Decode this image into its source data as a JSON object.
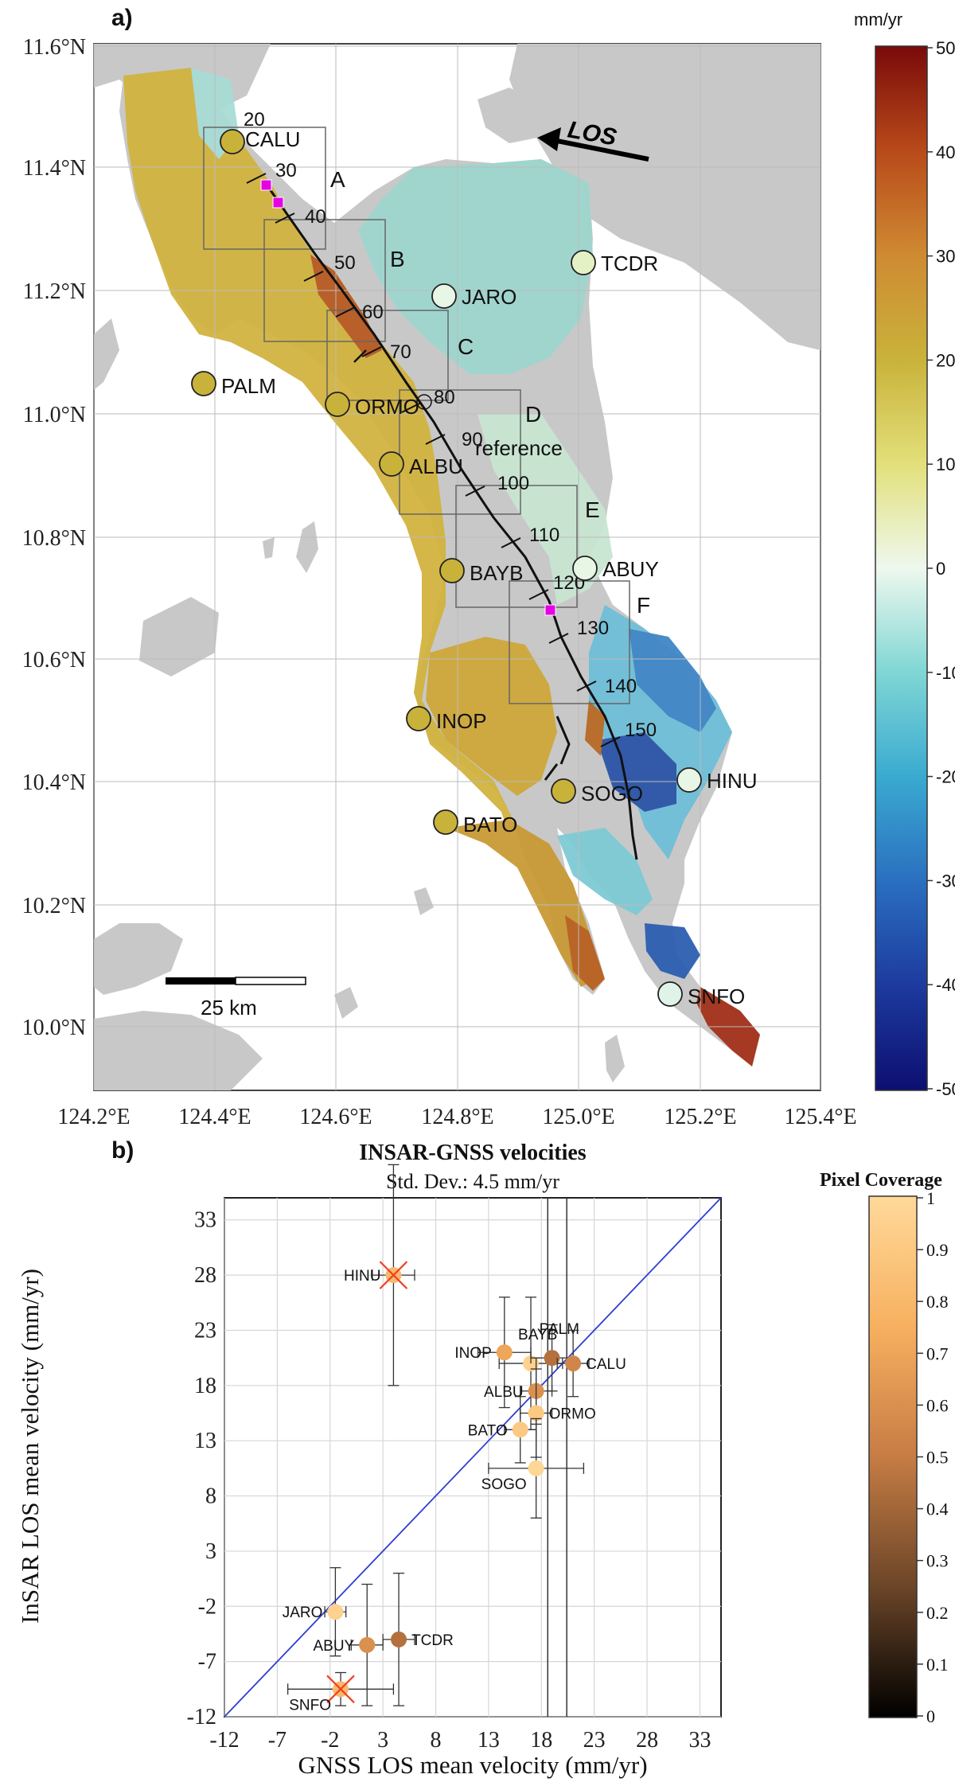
{
  "map": {
    "panel_label": "a)",
    "lat_ticks": [
      "11.6°N",
      "11.4°N",
      "11.2°N",
      "11.0°N",
      "10.8°N",
      "10.6°N",
      "10.4°N",
      "10.2°N",
      "10.0°N"
    ],
    "lon_ticks": [
      "124.2°E",
      "124.4°E",
      "124.6°E",
      "124.8°E",
      "125.0°E",
      "125.2°E",
      "125.4°E"
    ],
    "colorbar": {
      "unit": "mm/yr",
      "ticks": [
        "50",
        "40",
        "30",
        "20",
        "10",
        "0",
        "-10",
        "-20",
        "-30",
        "-40",
        "-50"
      ],
      "colors": [
        "#7a0a0a",
        "#b84a1a",
        "#cf8a32",
        "#c9b23a",
        "#e2e07a",
        "#eef8ee",
        "#7fd6d4",
        "#3aaad0",
        "#2a6fc0",
        "#1d3a9e",
        "#0c0f70"
      ]
    },
    "los_label": "LOS",
    "scale_label": "25 km",
    "reference_label": "reference",
    "box_labels": [
      "A",
      "B",
      "C",
      "D",
      "E",
      "F"
    ],
    "distance_labels": [
      "20",
      "30",
      "40",
      "50",
      "60",
      "70",
      "80",
      "90",
      "100",
      "110",
      "120",
      "130",
      "140",
      "150"
    ],
    "stations": [
      {
        "name": "CALU",
        "color": "#c9b23a"
      },
      {
        "name": "TCDR",
        "color": "#e4f1c4"
      },
      {
        "name": "JARO",
        "color": "#e8f6e6"
      },
      {
        "name": "PALM",
        "color": "#c9b23a"
      },
      {
        "name": "ORMO",
        "color": "#c9b23a"
      },
      {
        "name": "ALBU",
        "color": "#c9b23a"
      },
      {
        "name": "BAYB",
        "color": "#c9b23a"
      },
      {
        "name": "ABUY",
        "color": "#e8f6e6"
      },
      {
        "name": "INOP",
        "color": "#c9b23a"
      },
      {
        "name": "SOGO",
        "color": "#c9b23a"
      },
      {
        "name": "HINU",
        "color": "#e8f6e6"
      },
      {
        "name": "BATO",
        "color": "#c9b23a"
      },
      {
        "name": "SNFO",
        "color": "#dff3e8"
      }
    ]
  },
  "chart_data": {
    "type": "scatter",
    "panel_label": "b)",
    "title": "INSAR-GNSS velocities",
    "subtitle": "Std. Dev.: 4.5 mm/yr",
    "xlabel": "GNSS LOS mean velocity (mm/yr)",
    "ylabel": "InSAR LOS mean velocity (mm/yr)",
    "xlim": [
      -12,
      35
    ],
    "ylim": [
      -12,
      35
    ],
    "x_ticks": [
      -12,
      -7,
      -2,
      3,
      8,
      13,
      18,
      23,
      28,
      33
    ],
    "y_ticks": [
      -12,
      -7,
      -2,
      3,
      8,
      13,
      18,
      23,
      28,
      33
    ],
    "colorbar_label": "Pixel Coverage",
    "colorbar_ticks": [
      "1",
      "0.9",
      "0.8",
      "0.7",
      "0.6",
      "0.5",
      "0.4",
      "0.3",
      "0.2",
      "0.1",
      "0"
    ],
    "points": [
      {
        "name": "HINU",
        "x": 4.0,
        "y": 28.0,
        "xerr": 2.0,
        "yerr": 10.0,
        "coverage": 0.8,
        "outlier": true
      },
      {
        "name": "BAYB",
        "x": 17.0,
        "y": 20.0,
        "xerr": 3.0,
        "yerr": 6.0,
        "coverage": 0.95
      },
      {
        "name": "INOP",
        "x": 14.5,
        "y": 21.0,
        "xerr": 2.5,
        "yerr": 5.0,
        "coverage": 0.7
      },
      {
        "name": "PALM",
        "x": 19.0,
        "y": 20.5,
        "xerr": 2.0,
        "yerr": 3.0,
        "coverage": 0.45
      },
      {
        "name": "CALU",
        "x": 21.0,
        "y": 20.0,
        "xerr": 1.5,
        "yerr": 3.0,
        "coverage": 0.55
      },
      {
        "name": "ALBU",
        "x": 17.5,
        "y": 17.5,
        "xerr": 1.5,
        "yerr": 3.0,
        "coverage": 0.6
      },
      {
        "name": "ORMO",
        "x": 17.5,
        "y": 15.5,
        "xerr": 1.5,
        "yerr": 4.0,
        "coverage": 0.9
      },
      {
        "name": "BATO",
        "x": 16.0,
        "y": 14.0,
        "xerr": 1.5,
        "yerr": 3.0,
        "coverage": 0.9
      },
      {
        "name": "SOGO",
        "x": 17.5,
        "y": 10.5,
        "xerr": 4.5,
        "yerr": 4.5,
        "coverage": 0.98
      },
      {
        "name": "JARO",
        "x": -1.5,
        "y": -2.5,
        "xerr": 1.0,
        "yerr": 4.0,
        "coverage": 0.95
      },
      {
        "name": "ABUY",
        "x": 1.5,
        "y": -5.5,
        "xerr": 1.5,
        "yerr": 5.5,
        "coverage": 0.6
      },
      {
        "name": "TCDR",
        "x": 4.5,
        "y": -5.0,
        "xerr": 1.5,
        "yerr": 6.0,
        "coverage": 0.45
      },
      {
        "name": "SNFO",
        "x": -1.0,
        "y": -9.5,
        "xerr": 5.0,
        "yerr": 1.5,
        "coverage": 0.8,
        "outlier": true
      }
    ],
    "reference_line": "1:1",
    "grid": true
  }
}
